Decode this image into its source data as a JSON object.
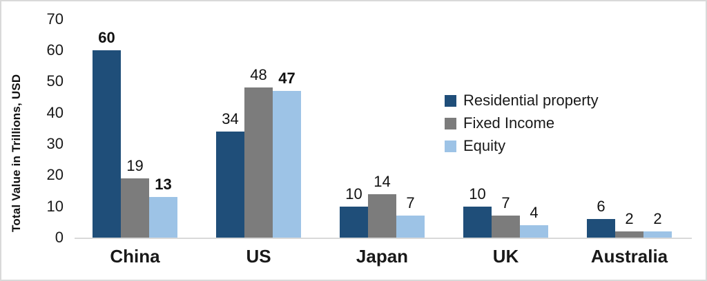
{
  "chart_data": {
    "type": "bar",
    "title": "",
    "xlabel": "",
    "ylabel": "Total Value in Trillions, USD",
    "ylim": [
      0,
      70
    ],
    "yticks": [
      0,
      10,
      20,
      30,
      40,
      50,
      60,
      70
    ],
    "grid": false,
    "data_labels_shown": true,
    "legend_position": "center-right",
    "categories": [
      "China",
      "US",
      "Japan",
      "UK",
      "Australia"
    ],
    "series": [
      {
        "name": "Residential property",
        "color": "#1F4E79",
        "values": [
          60,
          34,
          10,
          10,
          6
        ],
        "bold_value_labels": [
          true,
          false,
          false,
          false,
          false
        ]
      },
      {
        "name": "Fixed Income",
        "color": "#7C7C7C",
        "values": [
          19,
          48,
          14,
          7,
          2
        ],
        "bold_value_labels": [
          false,
          false,
          false,
          false,
          false
        ]
      },
      {
        "name": "Equity",
        "color": "#9DC3E6",
        "values": [
          13,
          47,
          7,
          4,
          2
        ],
        "bold_value_labels": [
          true,
          true,
          false,
          false,
          false
        ]
      }
    ]
  },
  "colors": {
    "axis_line": "#d9d9d9",
    "border": "#d9d9d9",
    "text": "#191919",
    "background": "#ffffff"
  }
}
